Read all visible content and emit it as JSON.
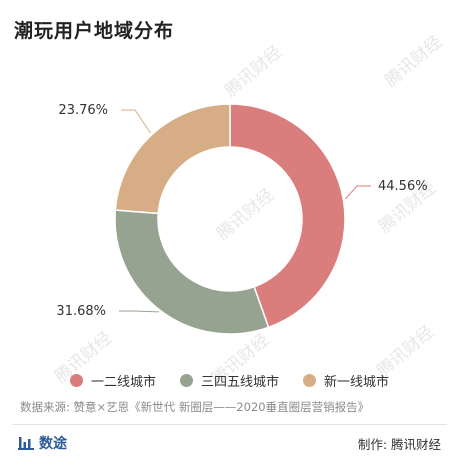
{
  "title": "潮玩用户地域分布",
  "watermark": "腾讯财经",
  "source": "数据来源: 赞意×艺恩《新世代 新圈层——2020垂直圈层营销报告》",
  "footer": {
    "brand": "数途",
    "credit": "制作: 腾讯财经"
  },
  "colors": {
    "tier1_2": "#d97e7c",
    "tier3_5": "#97a391",
    "new_tier1": "#d7ad86"
  },
  "chart_data": {
    "type": "pie",
    "donut": true,
    "title": "潮玩用户地域分布",
    "slices": [
      {
        "name": "一二线城市",
        "value": 44.56,
        "label": "44.56%",
        "color": "#d97e7c"
      },
      {
        "name": "三四五线城市",
        "value": 31.68,
        "label": "31.68%",
        "color": "#97a391"
      },
      {
        "name": "新一线城市",
        "value": 23.76,
        "label": "23.76%",
        "color": "#d7ad86"
      }
    ],
    "legend_position": "bottom"
  }
}
